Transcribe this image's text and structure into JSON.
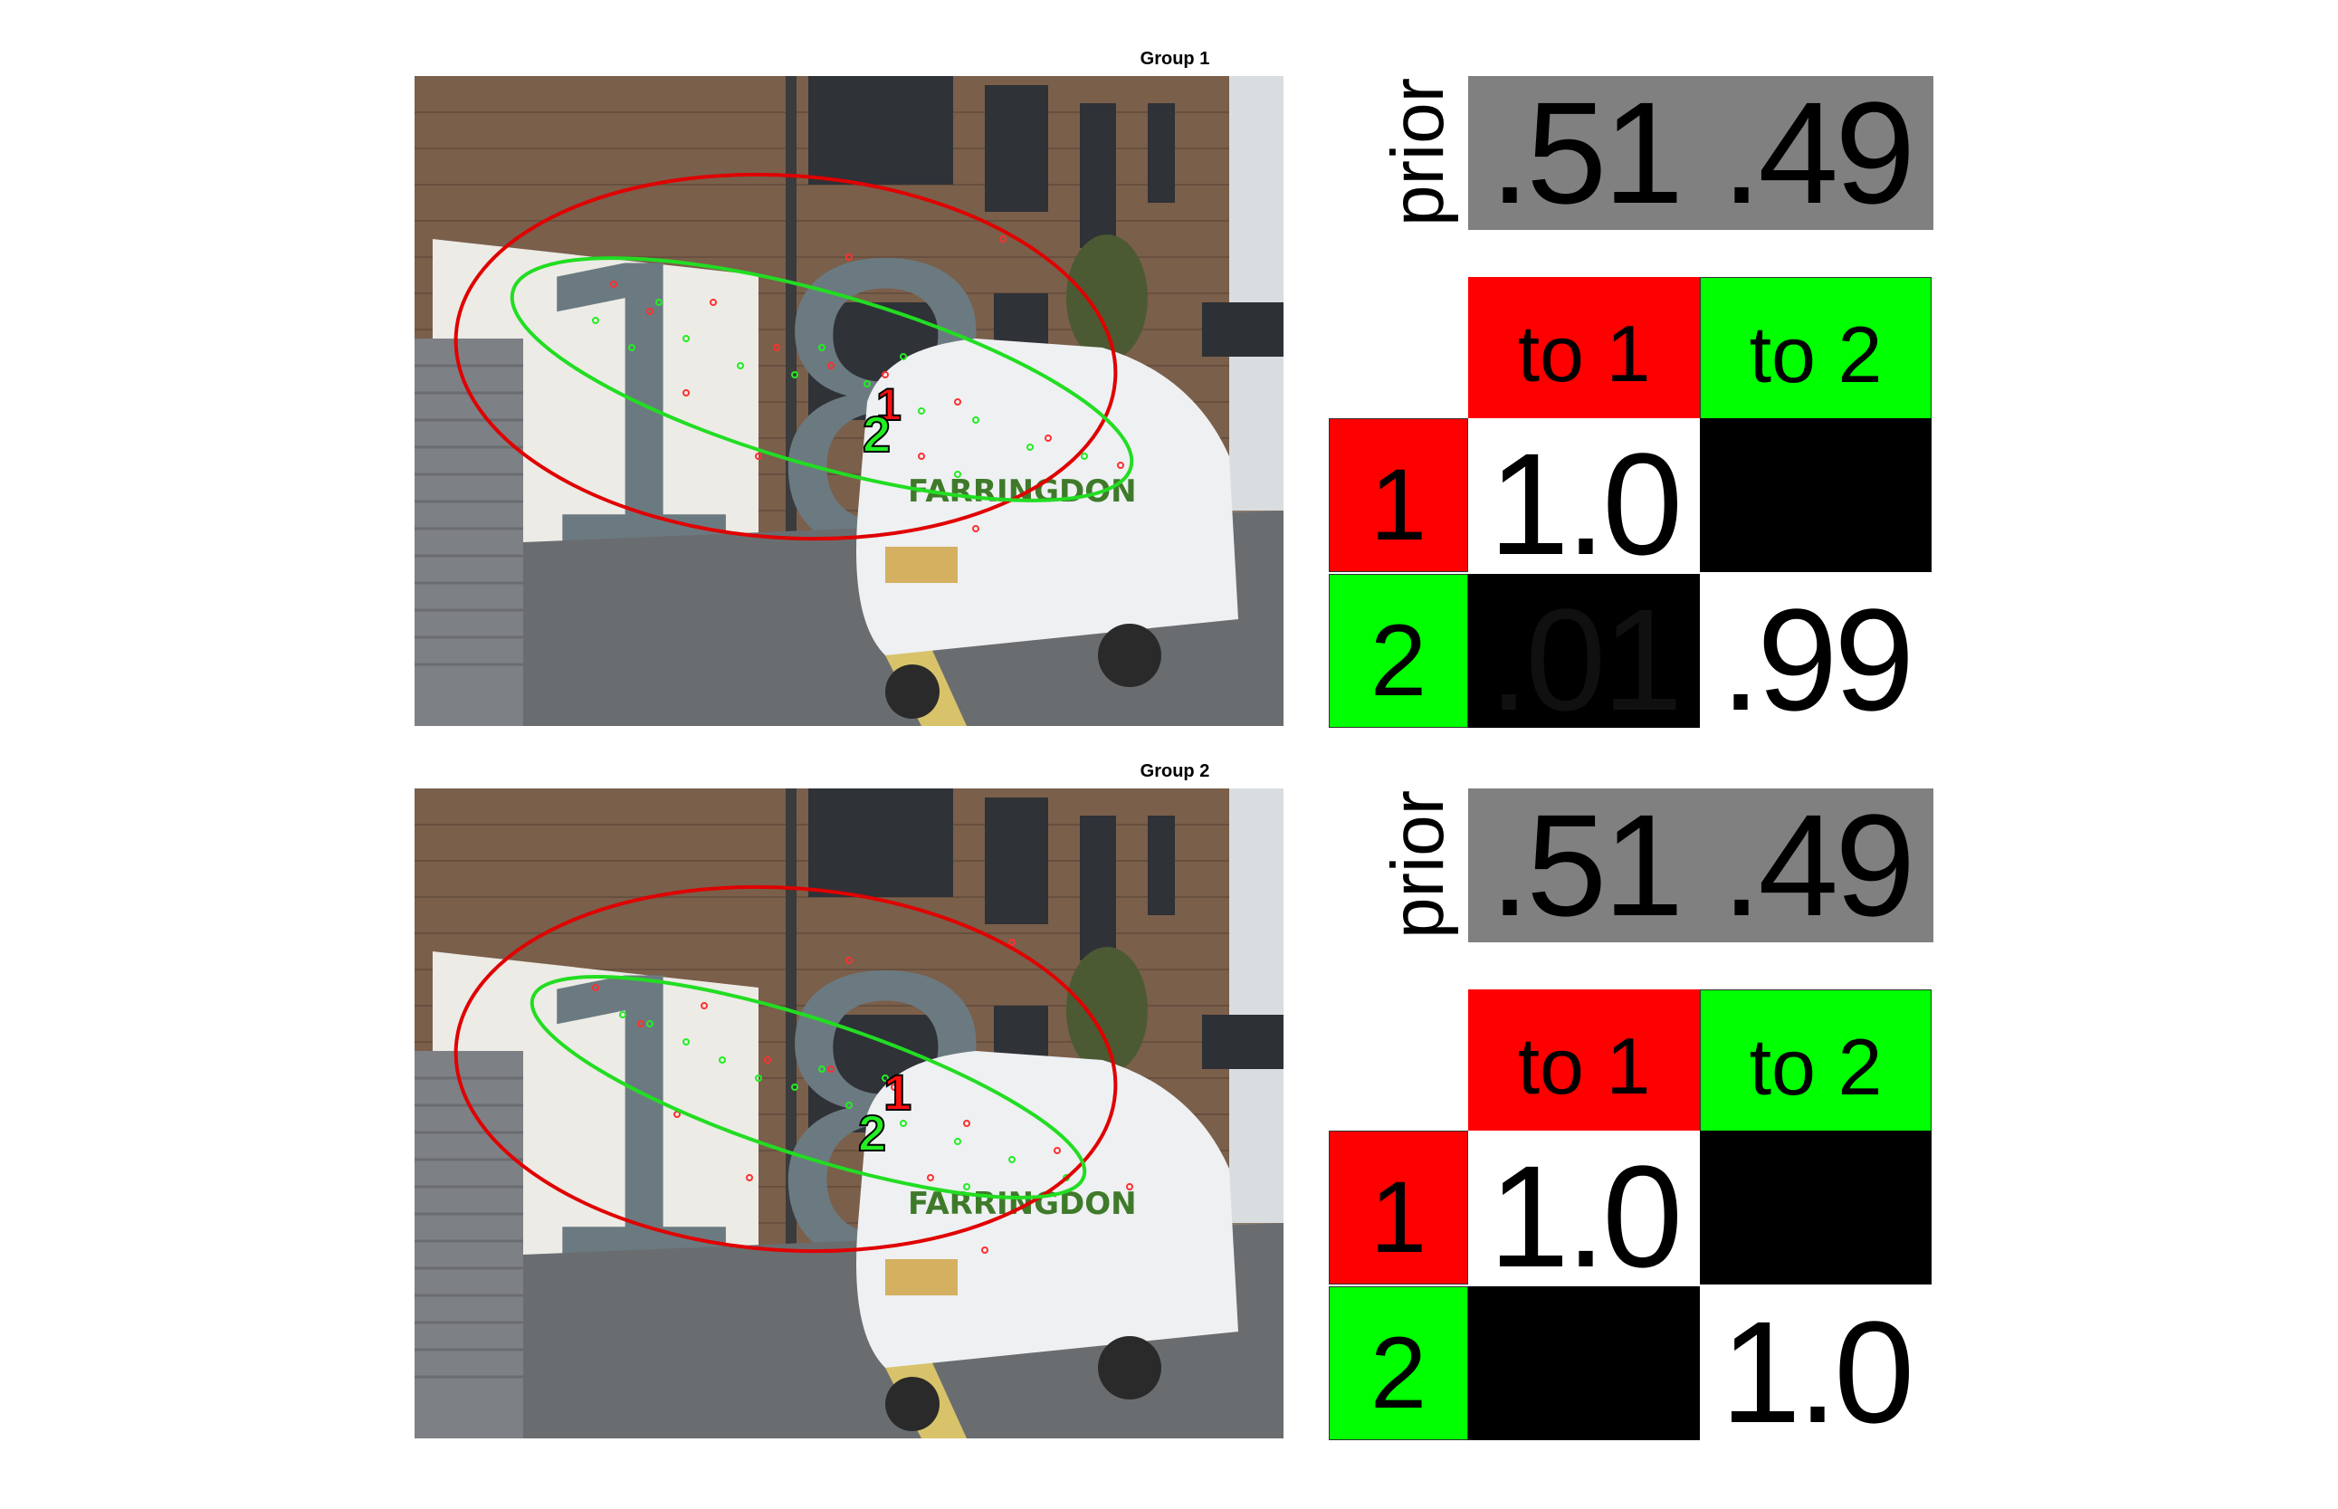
{
  "groups": [
    {
      "title": "Group 1",
      "prior_label": "prior",
      "prior": [
        ".51",
        ".49"
      ],
      "col_headers": [
        "to 1",
        "to 2"
      ],
      "row_labels": [
        "1",
        "2"
      ],
      "matrix": [
        [
          "1.0",
          ""
        ],
        [
          ".01",
          ".99"
        ]
      ],
      "markers": [
        "1",
        "2"
      ],
      "van_logo": "FARRINGDON"
    },
    {
      "title": "Group 2",
      "prior_label": "prior",
      "prior": [
        ".51",
        ".49"
      ],
      "col_headers": [
        "to 1",
        "to 2"
      ],
      "row_labels": [
        "1",
        "2"
      ],
      "matrix": [
        [
          "1.0",
          ""
        ],
        [
          "",
          "1.0"
        ]
      ],
      "markers": [
        "1",
        "2"
      ],
      "van_logo": "FARRINGDON"
    }
  ],
  "colors": {
    "state1": "#ff0000",
    "state2": "#00ff00",
    "prior": "#808080",
    "zero": "#000000",
    "one": "#ffffff"
  }
}
